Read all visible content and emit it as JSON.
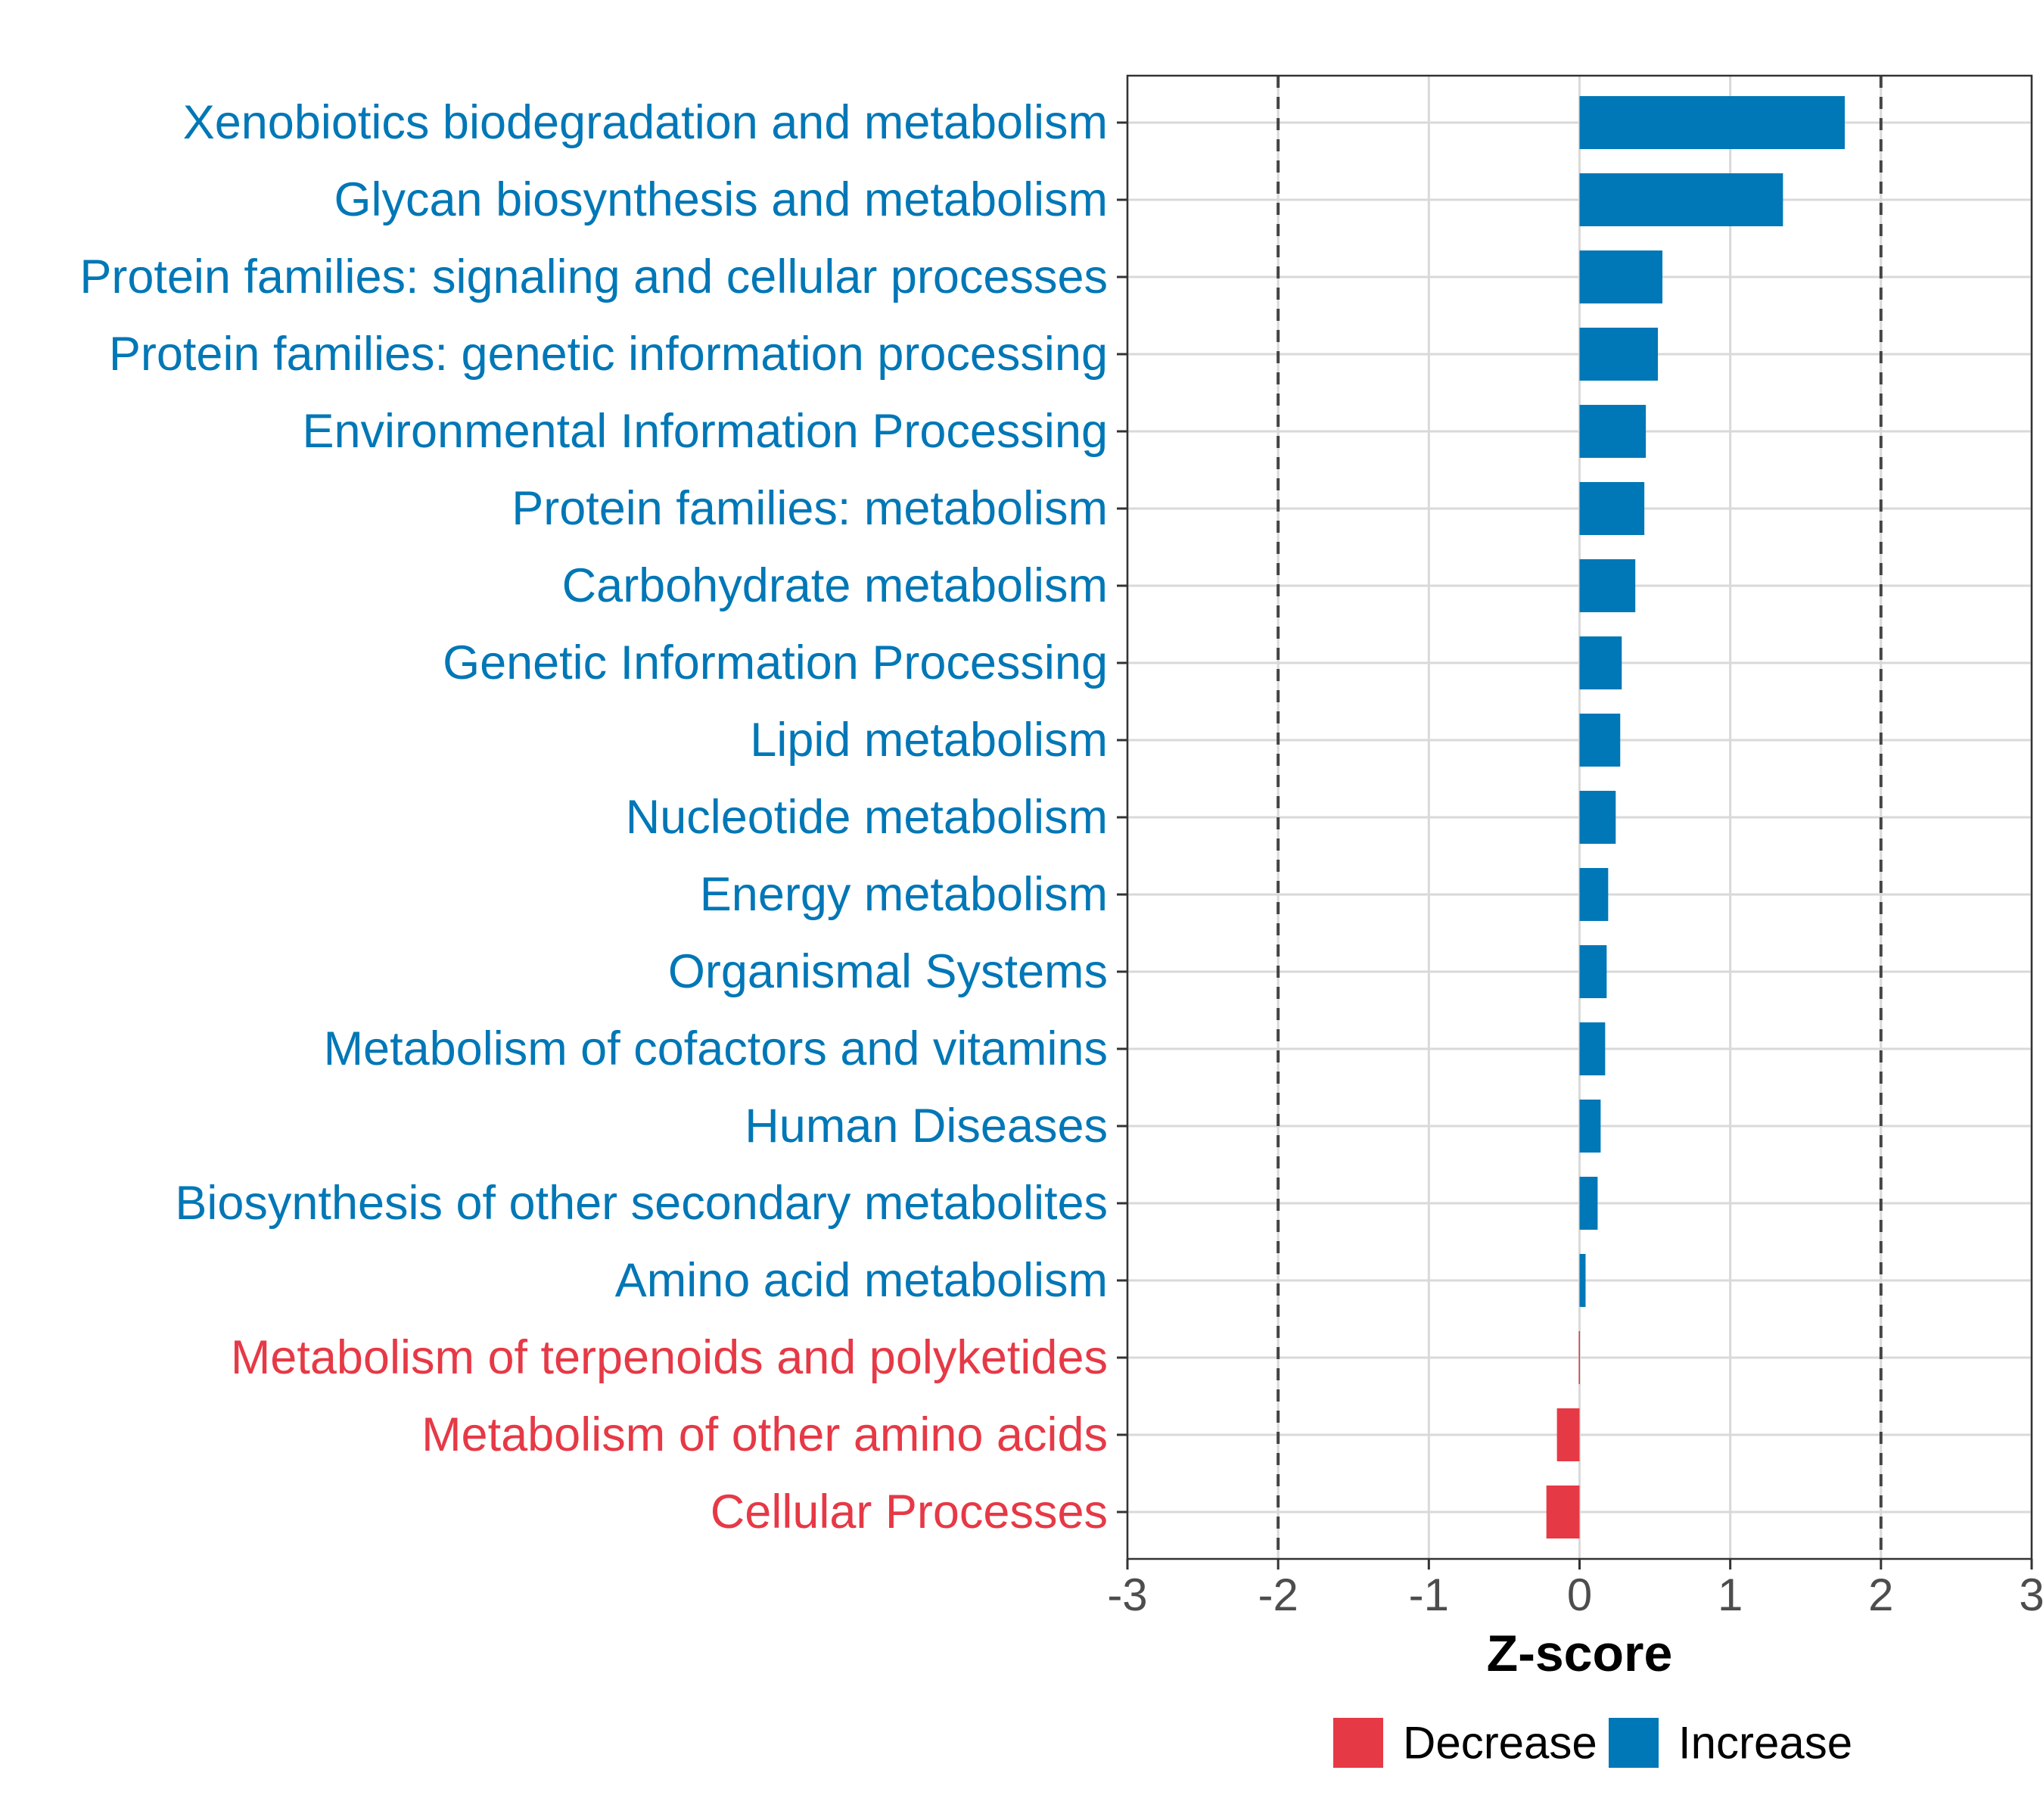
{
  "chart_data": {
    "type": "bar",
    "orientation": "horizontal",
    "xlabel": "Z-score",
    "ylabel": "",
    "xlim": [
      -3,
      3
    ],
    "x_ticks": [
      "-3",
      "-2",
      "-1",
      "0",
      "1",
      "2",
      "3"
    ],
    "x_tick_values": [
      -3,
      -2,
      -1,
      0,
      1,
      2,
      3
    ],
    "threshold_lines": [
      -2,
      2
    ],
    "categories": [
      "Xenobiotics biodegradation and metabolism",
      "Glycan biosynthesis and metabolism",
      "Protein families: signaling and cellular processes",
      "Protein families: genetic information processing",
      "Environmental Information Processing",
      "Protein families: metabolism",
      "Carbohydrate metabolism",
      "Genetic Information Processing",
      "Lipid metabolism",
      "Nucleotide metabolism",
      "Energy metabolism",
      "Organismal Systems",
      "Metabolism of cofactors and vitamins",
      "Human Diseases",
      "Biosynthesis of other secondary metabolites",
      "Amino acid metabolism",
      "Metabolism of terpenoids and polyketides",
      "Metabolism of other amino acids",
      "Cellular Processes"
    ],
    "values": [
      1.76,
      1.35,
      0.55,
      0.52,
      0.44,
      0.43,
      0.37,
      0.28,
      0.27,
      0.24,
      0.19,
      0.18,
      0.17,
      0.14,
      0.12,
      0.04,
      -0.005,
      -0.15,
      -0.22
    ],
    "groups": [
      "Increase",
      "Increase",
      "Increase",
      "Increase",
      "Increase",
      "Increase",
      "Increase",
      "Increase",
      "Increase",
      "Increase",
      "Increase",
      "Increase",
      "Increase",
      "Increase",
      "Increase",
      "Increase",
      "Decrease",
      "Decrease",
      "Decrease"
    ],
    "legend": {
      "position": "bottom",
      "entries": [
        {
          "label": "Decrease",
          "color": "#E63946"
        },
        {
          "label": "Increase",
          "color": "#0077B6"
        }
      ]
    },
    "colors": {
      "Increase": "#0077B6",
      "Decrease": "#E63946",
      "grid": "#D9D9D9",
      "threshold": "#444444",
      "axis": "#333333",
      "tick_text": "#4D4D4D",
      "title_text": "#000000"
    }
  }
}
